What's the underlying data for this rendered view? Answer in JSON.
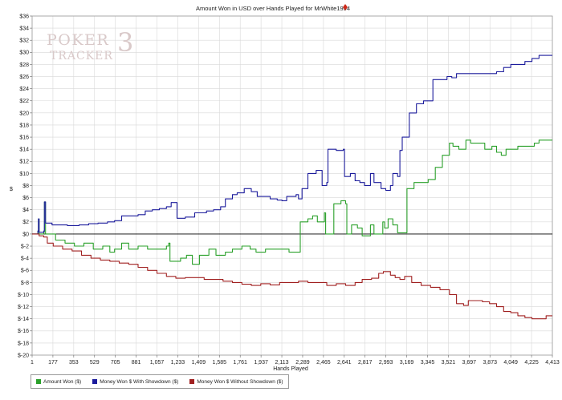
{
  "colors": {
    "amount_won": "#2aa02a",
    "with_showdown": "#1c1c9c",
    "without_showdown": "#a02020",
    "grid": "#d8d8d8",
    "zero_line": "#000000",
    "watermark": "#c9b7b7",
    "icon": "#cc2a1a"
  },
  "icons": {
    "title_icon": "poker-tracker-logo-icon"
  },
  "watermark": {
    "line1": "POKER",
    "line2": "TRACKER",
    "glyph": "3"
  },
  "chart_data": {
    "type": "line",
    "title": "Amount Won in USD over Hands Played for MrWhite1994",
    "xlabel": "Hands Played",
    "ylabel": "$",
    "xlim": [
      1,
      4413
    ],
    "ylim": [
      -20,
      36
    ],
    "grid": true,
    "legend_position": "bottom-left",
    "x_ticks": [
      "1",
      "177",
      "353",
      "529",
      "705",
      "881",
      "1,057",
      "1,233",
      "1,409",
      "1,585",
      "1,761",
      "1,937",
      "2,113",
      "2,289",
      "2,465",
      "2,641",
      "2,817",
      "2,993",
      "3,169",
      "3,345",
      "3,521",
      "3,697",
      "3,873",
      "4,049",
      "4,225",
      "4,413"
    ],
    "y_ticks": [
      "$36",
      "$34",
      "$32",
      "$30",
      "$28",
      "$26",
      "$24",
      "$22",
      "$20",
      "$18",
      "$16",
      "$14",
      "$12",
      "$10",
      "$8",
      "$6",
      "$4",
      "$2",
      "$0",
      "$-2",
      "$-4",
      "$-6",
      "$-8",
      "$-10",
      "$-12",
      "$-14",
      "$-16",
      "$-18",
      "$-20"
    ],
    "series": [
      {
        "name": "Amount Won ($)",
        "points": [
          [
            1,
            0
          ],
          [
            50,
            0.5
          ],
          [
            55,
            2.5
          ],
          [
            60,
            0
          ],
          [
            100,
            0.3
          ],
          [
            105,
            5.3
          ],
          [
            115,
            0
          ],
          [
            200,
            -1
          ],
          [
            280,
            -1.5
          ],
          [
            360,
            -2
          ],
          [
            440,
            -1.5
          ],
          [
            520,
            -2.5
          ],
          [
            600,
            -2
          ],
          [
            660,
            -3
          ],
          [
            700,
            -2.5
          ],
          [
            760,
            -1.5
          ],
          [
            820,
            -2.5
          ],
          [
            900,
            -2
          ],
          [
            980,
            -2.5
          ],
          [
            1050,
            -2.5
          ],
          [
            1140,
            -2
          ],
          [
            1160,
            -1.5
          ],
          [
            1170,
            -4.5
          ],
          [
            1260,
            -4
          ],
          [
            1310,
            -3.5
          ],
          [
            1360,
            -5
          ],
          [
            1420,
            -3.5
          ],
          [
            1500,
            -2.5
          ],
          [
            1560,
            -3.5
          ],
          [
            1640,
            -3
          ],
          [
            1700,
            -2.5
          ],
          [
            1780,
            -2
          ],
          [
            1850,
            -2.5
          ],
          [
            1900,
            -3
          ],
          [
            1980,
            -2.5
          ],
          [
            2080,
            -2.5
          ],
          [
            2180,
            -3
          ],
          [
            2260,
            -3
          ],
          [
            2275,
            2
          ],
          [
            2340,
            2.5
          ],
          [
            2380,
            3
          ],
          [
            2420,
            2
          ],
          [
            2460,
            2
          ],
          [
            2480,
            3.5
          ],
          [
            2490,
            0
          ],
          [
            2550,
            0
          ],
          [
            2560,
            5
          ],
          [
            2620,
            5.5
          ],
          [
            2660,
            5
          ],
          [
            2670,
            0
          ],
          [
            2710,
            1.5
          ],
          [
            2760,
            1
          ],
          [
            2800,
            -0.3
          ],
          [
            2870,
            1.5
          ],
          [
            2900,
            0
          ],
          [
            2940,
            0
          ],
          [
            2975,
            2
          ],
          [
            2990,
            1
          ],
          [
            3020,
            2.5
          ],
          [
            3060,
            1.5
          ],
          [
            3100,
            0.2
          ],
          [
            3160,
            0.2
          ],
          [
            3180,
            7.5
          ],
          [
            3240,
            8.5
          ],
          [
            3300,
            8.5
          ],
          [
            3360,
            9
          ],
          [
            3420,
            11
          ],
          [
            3480,
            13
          ],
          [
            3540,
            15
          ],
          [
            3570,
            14.5
          ],
          [
            3620,
            14
          ],
          [
            3680,
            15.5
          ],
          [
            3720,
            15
          ],
          [
            3760,
            15
          ],
          [
            3840,
            14
          ],
          [
            3900,
            14.5
          ],
          [
            3940,
            13.5
          ],
          [
            3980,
            13
          ],
          [
            4020,
            14
          ],
          [
            4060,
            14
          ],
          [
            4120,
            14.5
          ],
          [
            4190,
            14.5
          ],
          [
            4260,
            15
          ],
          [
            4300,
            15.5
          ],
          [
            4360,
            15.5
          ],
          [
            4413,
            15.5
          ]
        ]
      },
      {
        "name": "Money Won $ With Showdown ($)",
        "points": [
          [
            1,
            0
          ],
          [
            50,
            0.5
          ],
          [
            55,
            2.5
          ],
          [
            60,
            0.3
          ],
          [
            100,
            0.5
          ],
          [
            105,
            5.3
          ],
          [
            115,
            1.8
          ],
          [
            170,
            1.5
          ],
          [
            250,
            1.5
          ],
          [
            300,
            1.4
          ],
          [
            400,
            1.5
          ],
          [
            480,
            1.7
          ],
          [
            560,
            1.8
          ],
          [
            640,
            2
          ],
          [
            700,
            2.2
          ],
          [
            760,
            3
          ],
          [
            840,
            3
          ],
          [
            900,
            3.2
          ],
          [
            960,
            3.8
          ],
          [
            1020,
            4
          ],
          [
            1080,
            4.2
          ],
          [
            1140,
            4.5
          ],
          [
            1180,
            5.2
          ],
          [
            1220,
            5.2
          ],
          [
            1230,
            2.6
          ],
          [
            1300,
            2.8
          ],
          [
            1380,
            3.5
          ],
          [
            1440,
            3.5
          ],
          [
            1480,
            3.8
          ],
          [
            1540,
            4
          ],
          [
            1600,
            4.5
          ],
          [
            1640,
            5.8
          ],
          [
            1700,
            6.5
          ],
          [
            1740,
            6.8
          ],
          [
            1800,
            7.5
          ],
          [
            1860,
            7
          ],
          [
            1910,
            6.2
          ],
          [
            1960,
            6.2
          ],
          [
            2020,
            5.8
          ],
          [
            2080,
            5.6
          ],
          [
            2120,
            5.5
          ],
          [
            2160,
            6.2
          ],
          [
            2240,
            6.5
          ],
          [
            2260,
            5.8
          ],
          [
            2290,
            7.5
          ],
          [
            2340,
            10
          ],
          [
            2410,
            10.5
          ],
          [
            2460,
            8
          ],
          [
            2500,
            8.5
          ],
          [
            2510,
            14
          ],
          [
            2580,
            13.8
          ],
          [
            2640,
            14
          ],
          [
            2650,
            9.5
          ],
          [
            2700,
            10
          ],
          [
            2740,
            8.8
          ],
          [
            2780,
            8.5
          ],
          [
            2820,
            8
          ],
          [
            2870,
            10
          ],
          [
            2900,
            8.5
          ],
          [
            2960,
            7.5
          ],
          [
            3000,
            7.2
          ],
          [
            3040,
            8
          ],
          [
            3060,
            10
          ],
          [
            3100,
            9.5
          ],
          [
            3120,
            13.8
          ],
          [
            3140,
            16
          ],
          [
            3200,
            20
          ],
          [
            3260,
            21.5
          ],
          [
            3320,
            22
          ],
          [
            3400,
            25.5
          ],
          [
            3440,
            25.5
          ],
          [
            3520,
            26
          ],
          [
            3560,
            25.8
          ],
          [
            3600,
            26.5
          ],
          [
            3680,
            26.5
          ],
          [
            3760,
            26.5
          ],
          [
            3840,
            26.5
          ],
          [
            3920,
            26.5
          ],
          [
            3940,
            26.8
          ],
          [
            4000,
            27.5
          ],
          [
            4060,
            28
          ],
          [
            4120,
            28
          ],
          [
            4180,
            28.5
          ],
          [
            4240,
            29
          ],
          [
            4300,
            29.5
          ],
          [
            4413,
            29.5
          ]
        ]
      },
      {
        "name": "Money Won $ Without Showdown ($)",
        "points": [
          [
            1,
            0
          ],
          [
            60,
            -0.3
          ],
          [
            100,
            -0.5
          ],
          [
            130,
            -1.5
          ],
          [
            180,
            -2
          ],
          [
            260,
            -2.5
          ],
          [
            340,
            -2.8
          ],
          [
            420,
            -3.5
          ],
          [
            500,
            -4
          ],
          [
            580,
            -4.3
          ],
          [
            660,
            -4.5
          ],
          [
            740,
            -4.8
          ],
          [
            820,
            -5
          ],
          [
            900,
            -5.5
          ],
          [
            980,
            -6
          ],
          [
            1060,
            -6.5
          ],
          [
            1140,
            -7
          ],
          [
            1220,
            -7.3
          ],
          [
            1300,
            -7.2
          ],
          [
            1380,
            -7.2
          ],
          [
            1460,
            -7.5
          ],
          [
            1540,
            -7.5
          ],
          [
            1620,
            -7.8
          ],
          [
            1700,
            -8
          ],
          [
            1780,
            -8.3
          ],
          [
            1860,
            -8.5
          ],
          [
            1940,
            -8.2
          ],
          [
            2020,
            -8.4
          ],
          [
            2100,
            -8
          ],
          [
            2180,
            -8
          ],
          [
            2260,
            -7.8
          ],
          [
            2340,
            -8
          ],
          [
            2420,
            -8
          ],
          [
            2500,
            -8.5
          ],
          [
            2580,
            -8.2
          ],
          [
            2660,
            -8.5
          ],
          [
            2740,
            -8
          ],
          [
            2800,
            -7.5
          ],
          [
            2880,
            -7.3
          ],
          [
            2940,
            -6.5
          ],
          [
            2980,
            -6.2
          ],
          [
            3040,
            -6.8
          ],
          [
            3080,
            -7.2
          ],
          [
            3120,
            -7.5
          ],
          [
            3160,
            -7
          ],
          [
            3220,
            -8
          ],
          [
            3300,
            -8.5
          ],
          [
            3380,
            -8.8
          ],
          [
            3460,
            -9.2
          ],
          [
            3540,
            -10
          ],
          [
            3600,
            -11.5
          ],
          [
            3660,
            -11.8
          ],
          [
            3700,
            -11
          ],
          [
            3760,
            -11
          ],
          [
            3820,
            -11.2
          ],
          [
            3880,
            -11.5
          ],
          [
            3940,
            -12
          ],
          [
            4000,
            -12.8
          ],
          [
            4060,
            -13
          ],
          [
            4120,
            -13.5
          ],
          [
            4180,
            -13.8
          ],
          [
            4240,
            -14
          ],
          [
            4300,
            -14
          ],
          [
            4360,
            -13.5
          ],
          [
            4413,
            -13.5
          ]
        ]
      }
    ]
  }
}
